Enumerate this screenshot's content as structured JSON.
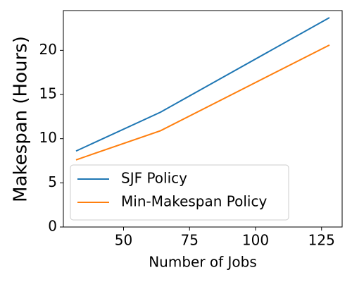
{
  "chart_data": {
    "type": "line",
    "x_label": "Number of Jobs",
    "y_label": "Makespan (Hours)",
    "x": [
      32,
      64,
      128
    ],
    "series": [
      {
        "name": "SJF Policy",
        "color": "#1f77b4",
        "values": [
          8.6,
          13.0,
          23.7
        ]
      },
      {
        "name": "Min-Makespan Policy",
        "color": "#ff7f0e",
        "values": [
          7.6,
          10.9,
          20.6
        ]
      }
    ],
    "xlim": [
      27.2,
      132.8
    ],
    "xticks": [
      50,
      75,
      100,
      125
    ],
    "ylim": [
      0,
      24.5
    ],
    "yticks": [
      0,
      5,
      10,
      15,
      20
    ],
    "legend": "lower left"
  }
}
